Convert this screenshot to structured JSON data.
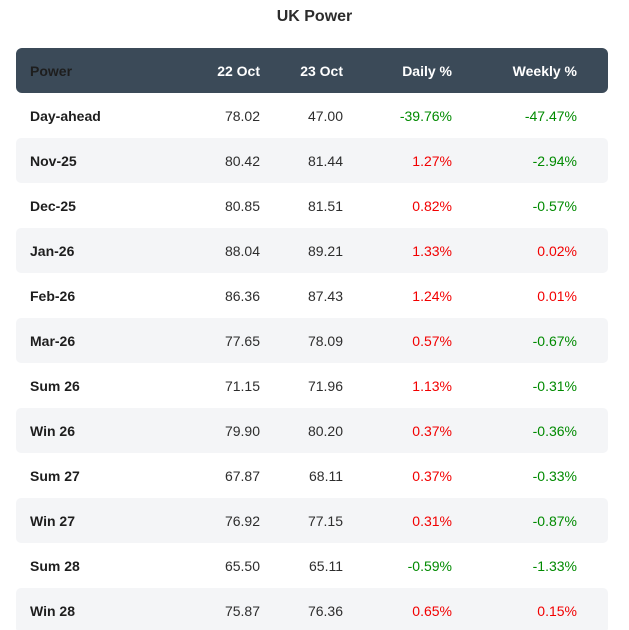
{
  "title": "UK Power",
  "colors": {
    "header-bg": "#3b4a58",
    "header-text": "#ffffff",
    "stripe": "#f4f5f7",
    "green": "#008a00",
    "red": "#f20000"
  },
  "chart_data": {
    "type": "table",
    "title": "UK Power",
    "columns": [
      "Power",
      "22 Oct",
      "23 Oct",
      "Daily %",
      "Weekly %"
    ],
    "rows": [
      {
        "label": "Day-ahead",
        "values": [
          "78.02",
          "47.00",
          "-39.76%",
          "-47.47%"
        ]
      },
      {
        "label": "Nov-25",
        "values": [
          "80.42",
          "81.44",
          "1.27%",
          "-2.94%"
        ]
      },
      {
        "label": "Dec-25",
        "values": [
          "80.85",
          "81.51",
          "0.82%",
          "-0.57%"
        ]
      },
      {
        "label": "Jan-26",
        "values": [
          "88.04",
          "89.21",
          "1.33%",
          "0.02%"
        ]
      },
      {
        "label": "Feb-26",
        "values": [
          "86.36",
          "87.43",
          "1.24%",
          "0.01%"
        ]
      },
      {
        "label": "Mar-26",
        "values": [
          "77.65",
          "78.09",
          "0.57%",
          "-0.67%"
        ]
      },
      {
        "label": "Sum 26",
        "values": [
          "71.15",
          "71.96",
          "1.13%",
          "-0.31%"
        ]
      },
      {
        "label": "Win 26",
        "values": [
          "79.90",
          "80.20",
          "0.37%",
          "-0.36%"
        ]
      },
      {
        "label": "Sum 27",
        "values": [
          "67.87",
          "68.11",
          "0.37%",
          "-0.33%"
        ]
      },
      {
        "label": "Win 27",
        "values": [
          "76.92",
          "77.15",
          "0.31%",
          "-0.87%"
        ]
      },
      {
        "label": "Sum 28",
        "values": [
          "65.50",
          "65.11",
          "-0.59%",
          "-1.33%"
        ]
      },
      {
        "label": "Win 28",
        "values": [
          "75.87",
          "76.36",
          "0.65%",
          "0.15%"
        ]
      }
    ]
  }
}
